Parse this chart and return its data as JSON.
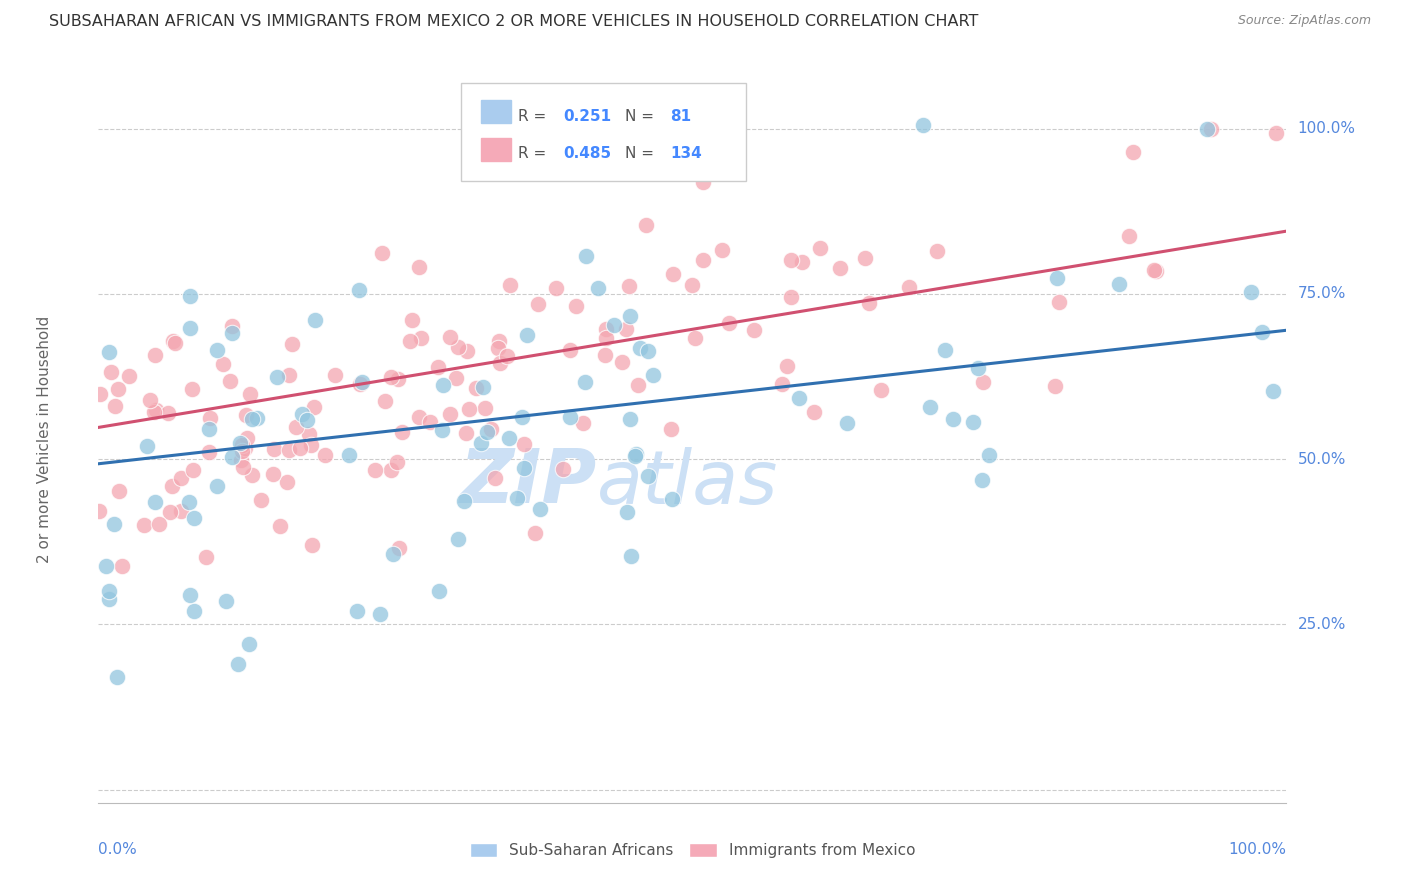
{
  "title": "SUBSAHARAN AFRICAN VS IMMIGRANTS FROM MEXICO 2 OR MORE VEHICLES IN HOUSEHOLD CORRELATION CHART",
  "source": "Source: ZipAtlas.com",
  "ylabel": "2 or more Vehicles in Household",
  "ytick_vals": [
    0.0,
    0.25,
    0.5,
    0.75,
    1.0
  ],
  "ytick_labels": [
    "",
    "25.0%",
    "50.0%",
    "75.0%",
    "100.0%"
  ],
  "blue_R": 0.251,
  "blue_N": 81,
  "pink_R": 0.485,
  "pink_N": 134,
  "blue_color": "#92c5de",
  "pink_color": "#f4a6b0",
  "blue_line_color": "#3070b0",
  "pink_line_color": "#d05070",
  "background_color": "#ffffff",
  "grid_color": "#cccccc",
  "title_color": "#333333",
  "watermark_text": "ZIPatlas",
  "watermark_color": "#cce0f5",
  "blue_legend_color": "#aaccee",
  "pink_legend_color": "#f5aab8",
  "xlim": [
    0.0,
    1.0
  ],
  "ylim": [
    -0.02,
    1.08
  ],
  "blue_line_y0": 0.493,
  "blue_line_y1": 0.695,
  "pink_line_y0": 0.548,
  "pink_line_y1": 0.845
}
